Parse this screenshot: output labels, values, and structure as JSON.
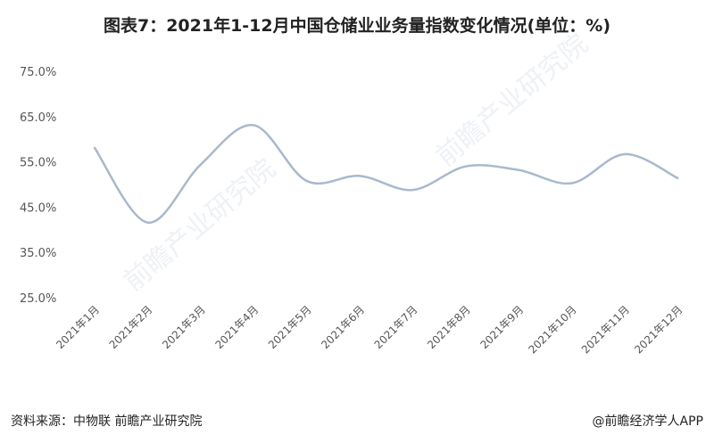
{
  "title": "图表7：2021年1-12月中国仓储业业务量指数变化情况(单位：%)",
  "source": "资料来源：中物联 前瞻产业研究院",
  "credit": "@前瞻经济学人APP",
  "watermark": "前瞻产业研究院",
  "colors": {
    "line": "#a9b9cd",
    "axis_text": "#555555"
  },
  "chart_data": {
    "type": "line",
    "title": "图表7：2021年1-12月中国仓储业业务量指数变化情况(单位：%)",
    "categories": [
      "2021年1月",
      "2021年2月",
      "2021年3月",
      "2021年4月",
      "2021年5月",
      "2021年6月",
      "2021年7月",
      "2021年8月",
      "2021年9月",
      "2021年10月",
      "2021年11月",
      "2021年12月"
    ],
    "values": [
      58.1,
      41.6,
      54.4,
      63.1,
      50.8,
      51.9,
      48.8,
      54.0,
      53.2,
      50.3,
      56.7,
      51.4
    ],
    "yticks": [
      "25.0%",
      "35.0%",
      "45.0%",
      "55.0%",
      "65.0%",
      "75.0%"
    ],
    "ylim": [
      25,
      75
    ],
    "smooth": true,
    "grid": false,
    "legend": "none"
  }
}
